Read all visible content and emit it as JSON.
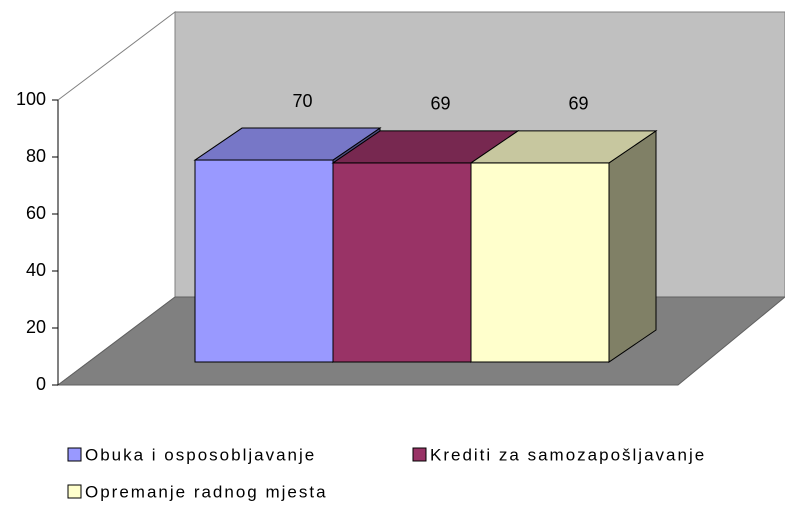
{
  "chart_data": {
    "type": "bar",
    "series": [
      {
        "name": "Obuka i osposobljavanje",
        "color": "#9999ff",
        "values": [
          70
        ]
      },
      {
        "name": "Krediti za samozapošljavanje",
        "color": "#993366",
        "values": [
          69
        ]
      },
      {
        "name": "Opremanje radnog mjesta",
        "color": "#ffffcc",
        "values": [
          69
        ]
      }
    ],
    "ylim": [
      0,
      100
    ],
    "yticks": [
      0,
      20,
      40,
      60,
      80,
      100
    ]
  }
}
